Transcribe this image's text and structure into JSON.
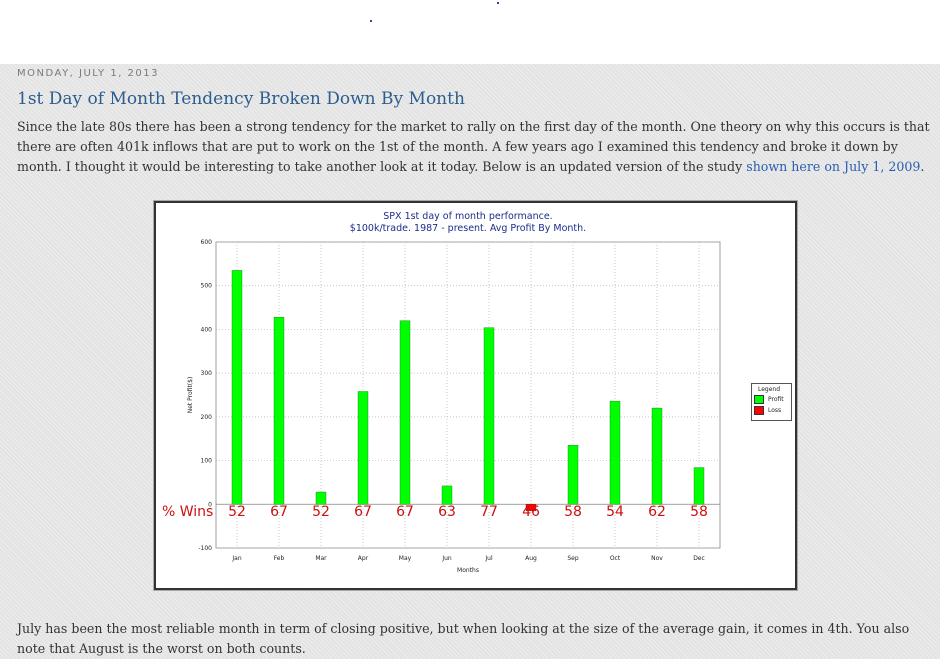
{
  "post": {
    "date_header": "MONDAY, JULY 1, 2013",
    "title": "1st Day of Month Tendency Broken Down By Month",
    "para1_text": "Since the late 80s there has been a strong tendency for the market to rally on the first day of the month.  One theory on why this occurs is that there are often 401k inflows that are put to work on the 1st of the month.  A few years ago I examined this tendency and broke it down by month.  I thought it would be interesting to take another look at it today.  Below is an updated version of the study ",
    "para1_link": "shown here on July 1, 2009",
    "para1_end": ".",
    "para2": "July has been the most reliable month in term of closing positive, but when looking at the size of the average gain, it comes in 4th.  You also note that August is the worst on both counts."
  },
  "chart_data": {
    "type": "bar",
    "title": "SPX 1st day of month performance.",
    "subtitle": "$100k/trade. 1987 - present. Avg Profit By Month.",
    "xlabel": "Months",
    "ylabel": "Net Profit($)",
    "ylim": [
      -100,
      600
    ],
    "yticks": [
      -100,
      0,
      100,
      200,
      300,
      400,
      500,
      600
    ],
    "grid": true,
    "legend_position": "right",
    "legend": {
      "title": "Legend",
      "items": [
        {
          "label": "Profit",
          "color": "#00ff00"
        },
        {
          "label": "Loss",
          "color": "#ff0000"
        }
      ]
    },
    "categories": [
      "Jan",
      "Feb",
      "Mar",
      "Apr",
      "May",
      "Jun",
      "Jul",
      "Aug",
      "Sep",
      "Oct",
      "Nov",
      "Dec"
    ],
    "values": [
      535,
      428,
      28,
      258,
      420,
      42,
      404,
      -15,
      135,
      236,
      220,
      84
    ],
    "pct_wins_label": "% Wins",
    "pct_wins": [
      "52",
      "67",
      "52",
      "67",
      "67",
      "63",
      "77",
      "46",
      "58",
      "54",
      "62",
      "58"
    ]
  }
}
